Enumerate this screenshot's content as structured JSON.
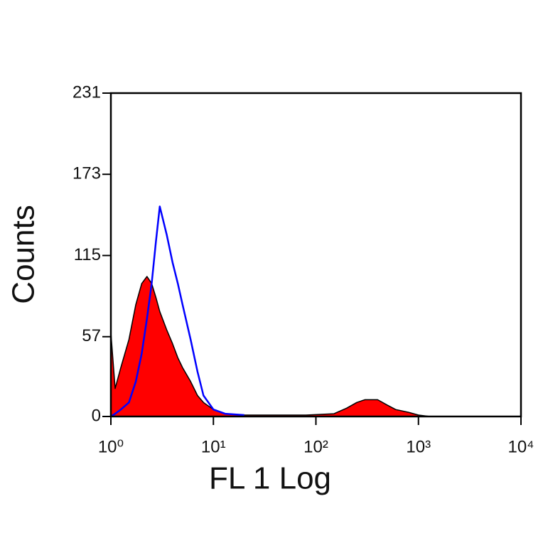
{
  "chart_data": {
    "type": "histogram-overlay",
    "xlabel": "FL 1 Log",
    "ylabel": "Counts",
    "xscale": "log",
    "xlim": [
      1,
      10000
    ],
    "xticks": [
      {
        "value": 1,
        "label": "10⁰"
      },
      {
        "value": 10,
        "label": "10¹"
      },
      {
        "value": 100,
        "label": "10²"
      },
      {
        "value": 1000,
        "label": "10³"
      },
      {
        "value": 10000,
        "label": "10⁴"
      }
    ],
    "ylim": [
      0,
      231
    ],
    "yticks": [
      0,
      57,
      115,
      173,
      231
    ],
    "x": [
      1,
      1.1,
      1.25,
      1.5,
      1.75,
      2,
      2.25,
      2.5,
      2.75,
      3,
      3.5,
      4,
      4.5,
      5,
      6,
      7,
      8,
      10,
      13,
      20,
      40,
      80,
      150,
      200,
      250,
      300,
      400,
      500,
      600,
      800,
      1000,
      1300
    ],
    "series": [
      {
        "color": "#ff0000",
        "edgecolor": "#000000",
        "filled": true,
        "values": [
          60,
          20,
          35,
          55,
          80,
          95,
          100,
          95,
          85,
          75,
          62,
          52,
          42,
          35,
          25,
          15,
          10,
          5,
          2,
          1,
          1,
          1,
          2,
          6,
          10,
          12,
          12,
          8,
          5,
          3,
          1,
          0
        ]
      },
      {
        "color": "#0000ff",
        "filled": false,
        "values": [
          0,
          2,
          5,
          10,
          25,
          45,
          70,
          95,
          125,
          150,
          130,
          110,
          95,
          80,
          55,
          32,
          15,
          5,
          2,
          1,
          null,
          null,
          null,
          null,
          null,
          null,
          null,
          null,
          null,
          null,
          null,
          null
        ]
      }
    ]
  }
}
